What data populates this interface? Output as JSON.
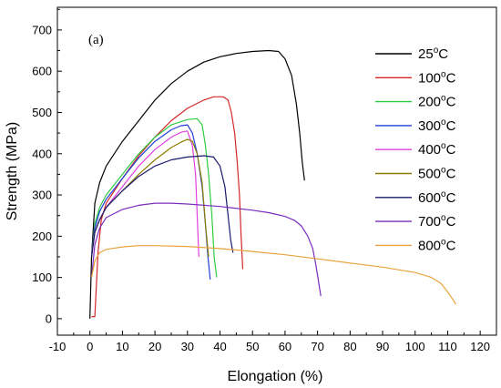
{
  "chart_data": {
    "type": "line",
    "panel_label": "(a)",
    "xlabel": "Elongation (%)",
    "ylabel": "Strength (MPa)",
    "xlim": [
      -10,
      125
    ],
    "ylim": [
      -40,
      755
    ],
    "xticks": [
      -10,
      0,
      10,
      20,
      30,
      40,
      50,
      60,
      70,
      80,
      90,
      100,
      110,
      120
    ],
    "yticks": [
      0,
      100,
      200,
      300,
      400,
      500,
      600,
      700
    ],
    "legend_position": "right",
    "series": [
      {
        "name": "25",
        "unit": "°C",
        "color": "#000000",
        "x": [
          0,
          0.5,
          1.5,
          3,
          5,
          10,
          15,
          20,
          25,
          30,
          35,
          40,
          45,
          50,
          55,
          58,
          60,
          62,
          63.5,
          64.5,
          65.3,
          66
        ],
        "y": [
          0,
          150,
          280,
          330,
          370,
          430,
          480,
          530,
          570,
          600,
          622,
          635,
          643,
          648,
          650,
          648,
          630,
          590,
          520,
          450,
          380,
          335
        ]
      },
      {
        "name": "100",
        "unit": "°C",
        "color": "#d62728",
        "x": [
          0.5,
          1.5,
          2.5,
          3.5,
          5,
          10,
          15,
          20,
          25,
          30,
          35,
          38,
          41,
          42.5,
          43.5,
          44.5,
          45.3,
          46,
          46.5,
          47
        ],
        "y": [
          5,
          5,
          160,
          240,
          280,
          340,
          395,
          440,
          480,
          510,
          530,
          538,
          538,
          530,
          500,
          450,
          380,
          300,
          200,
          120
        ]
      },
      {
        "name": "200",
        "unit": "°C",
        "color": "#2ecc40",
        "x": [
          0.5,
          1.5,
          3,
          5,
          10,
          15,
          20,
          25,
          30,
          33,
          34.5,
          35.5,
          36.5,
          37.5,
          38.2,
          39
        ],
        "y": [
          150,
          230,
          270,
          300,
          350,
          400,
          440,
          470,
          483,
          485,
          470,
          420,
          350,
          250,
          150,
          100
        ]
      },
      {
        "name": "300",
        "unit": "°C",
        "color": "#1f3fd8",
        "x": [
          0.5,
          1.5,
          3,
          5,
          10,
          15,
          20,
          25,
          28,
          30,
          31.5,
          33,
          34.5,
          35.5,
          36.3,
          37
        ],
        "y": [
          150,
          220,
          260,
          290,
          340,
          390,
          430,
          458,
          468,
          470,
          450,
          400,
          320,
          230,
          150,
          95
        ]
      },
      {
        "name": "400",
        "unit": "°C",
        "color": "#e040e0",
        "x": [
          0.5,
          1.5,
          3,
          5,
          10,
          15,
          20,
          25,
          28,
          30,
          31.5,
          32.5,
          33,
          33.5
        ],
        "y": [
          150,
          210,
          240,
          270,
          320,
          370,
          410,
          440,
          452,
          455,
          420,
          350,
          250,
          150
        ]
      },
      {
        "name": "500",
        "unit": "°C",
        "color": "#8b7d00",
        "x": [
          0.5,
          1.5,
          3,
          5,
          10,
          15,
          20,
          25,
          28,
          30,
          31.5,
          33,
          34.5,
          35.5,
          36.5
        ],
        "y": [
          150,
          210,
          240,
          270,
          310,
          350,
          385,
          415,
          428,
          435,
          430,
          400,
          330,
          230,
          150
        ]
      },
      {
        "name": "600",
        "unit": "°C",
        "color": "#1a1a6e",
        "x": [
          0.5,
          1.5,
          3,
          5,
          10,
          15,
          20,
          25,
          30,
          35,
          38,
          40,
          41.5,
          42.5,
          43.3,
          44
        ],
        "y": [
          150,
          210,
          240,
          270,
          310,
          345,
          370,
          385,
          392,
          395,
          392,
          370,
          320,
          250,
          190,
          160
        ]
      },
      {
        "name": "700",
        "unit": "°C",
        "color": "#7b2cbf",
        "x": [
          0.5,
          1.5,
          3,
          5,
          10,
          15,
          20,
          25,
          30,
          40,
          50,
          55,
          60,
          63,
          65,
          67,
          68.5,
          69.5,
          70.3,
          71
        ],
        "y": [
          100,
          180,
          220,
          245,
          265,
          275,
          280,
          280,
          278,
          272,
          263,
          257,
          248,
          238,
          225,
          200,
          170,
          130,
          90,
          55
        ]
      },
      {
        "name": "800",
        "unit": "°C",
        "color": "#e8a33c",
        "x": [
          0.5,
          1.5,
          3,
          5,
          10,
          15,
          20,
          30,
          40,
          50,
          60,
          70,
          80,
          90,
          100,
          105,
          108,
          110,
          111.5,
          112.5
        ],
        "y": [
          100,
          140,
          160,
          168,
          174,
          177,
          177,
          175,
          170,
          163,
          155,
          145,
          135,
          125,
          112,
          100,
          85,
          65,
          48,
          35
        ]
      }
    ]
  }
}
